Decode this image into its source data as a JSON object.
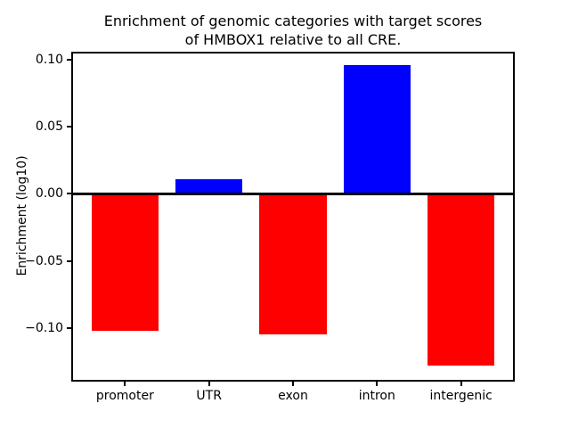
{
  "chart_data": {
    "type": "bar",
    "title": "Enrichment of genomic categories with target scores of HMBOX1 relative to all CRE.",
    "title_lines": [
      "Enrichment of genomic categories with target scores",
      "of HMBOX1 relative to all CRE."
    ],
    "xlabel": "",
    "ylabel": "Enrichment (log10)",
    "categories": [
      "promoter",
      "UTR",
      "exon",
      "intron",
      "intergenic"
    ],
    "values": [
      -0.102,
      0.011,
      -0.105,
      0.096,
      -0.128
    ],
    "colors": {
      "positive_bar": "#0000ff",
      "negative_bar": "#ff0000",
      "axis": "#000000",
      "background": "#ffffff"
    },
    "yticks": [
      0.1,
      0.05,
      0.0,
      -0.05,
      -0.1
    ],
    "ytick_labels": [
      "0.10",
      "0.05",
      "0.00",
      "−0.05",
      "−0.10"
    ],
    "ylim": [
      -0.14,
      0.106
    ],
    "xlim": [
      -0.64,
      4.64
    ],
    "bar_width_fraction": 0.8,
    "grid": false,
    "legend": "none",
    "zero_line": true
  }
}
